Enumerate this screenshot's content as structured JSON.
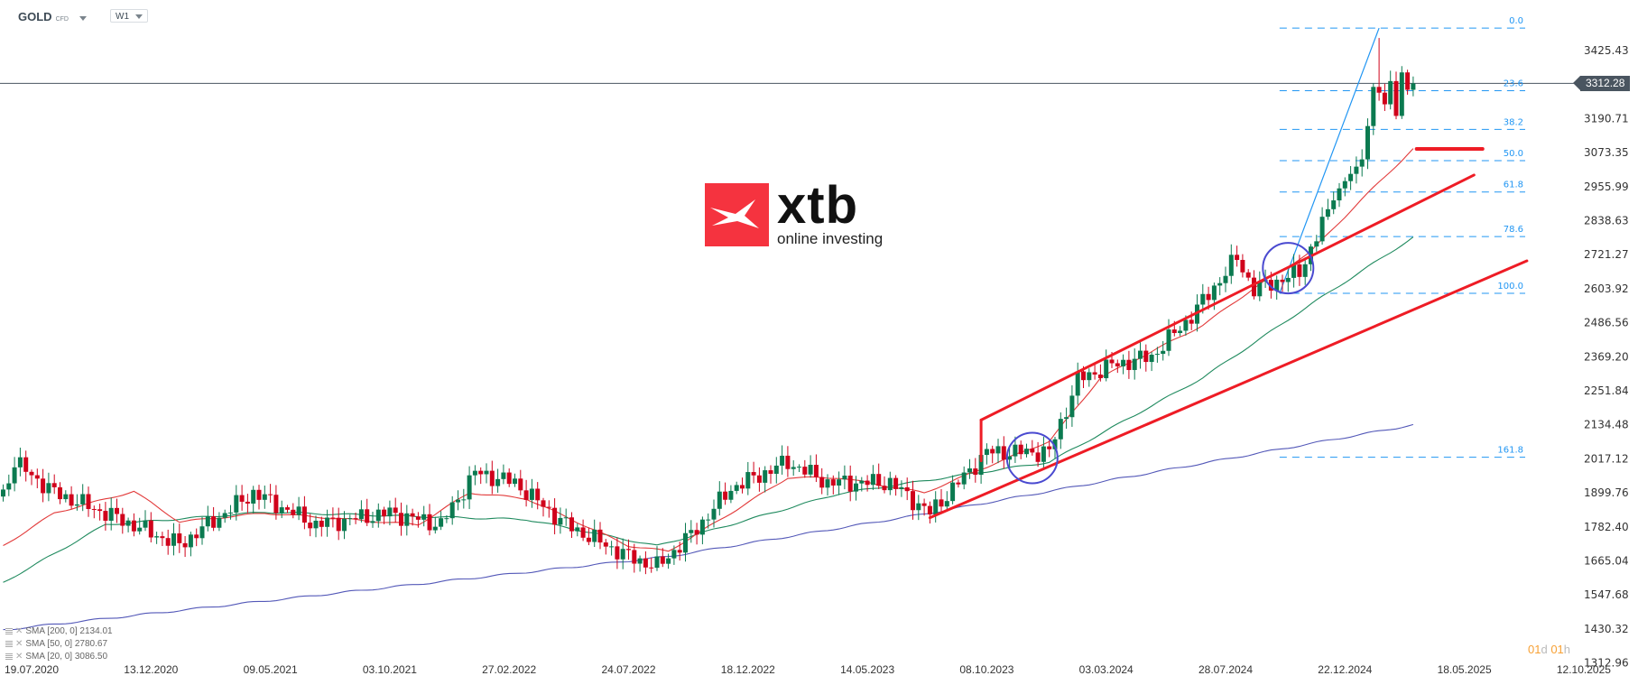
{
  "header": {
    "symbol": "GOLD",
    "instrument_type": "CFD",
    "timeframe": "W1"
  },
  "logo": {
    "brand": "xtb",
    "tagline": "online investing"
  },
  "current_price": "3312.28",
  "countdown": {
    "days": "01",
    "d": "d",
    "hours": "01",
    "h": "h"
  },
  "indicators": [
    {
      "label": "SMA [200, 0] 2134.01"
    },
    {
      "label": "SMA [50, 0] 2780.67"
    },
    {
      "label": "SMA [20, 0] 3086.50"
    }
  ],
  "colors": {
    "up": "#0b7a50",
    "down": "#d0021b",
    "sma200": "#5358b8",
    "sma50": "#1f8a5e",
    "sma20": "#e23a3a",
    "fib": "#2196f3",
    "trend": "#ee1c25",
    "circle": "#4a4ad0"
  },
  "chart_data": {
    "type": "candlestick",
    "x_unit": "weeks since 19.07.2020",
    "x_ticks": [
      "19.07.2020",
      "13.12.2020",
      "09.05.2021",
      "03.10.2021",
      "27.02.2022",
      "24.07.2022",
      "18.12.2022",
      "14.05.2023",
      "08.10.2023",
      "03.03.2024",
      "28.07.2024",
      "22.12.2024",
      "18.05.2025",
      "12.10.2025"
    ],
    "y_ticks": [
      "3425.43",
      "3190.71",
      "3073.35",
      "2955.99",
      "2838.63",
      "2721.27",
      "2603.92",
      "2486.56",
      "2369.20",
      "2251.84",
      "2134.48",
      "2017.12",
      "1899.76",
      "1782.40",
      "1665.04",
      "1547.68",
      "1430.32",
      "1312.96"
    ],
    "ylim": [
      1312.96,
      3425.43
    ],
    "close_anchors": [
      [
        -5,
        1897
      ],
      [
        -3,
        2006
      ],
      [
        4,
        1900
      ],
      [
        13,
        1830
      ],
      [
        26,
        1720
      ],
      [
        39,
        1900
      ],
      [
        50,
        1790
      ],
      [
        63,
        1830
      ],
      [
        72,
        1790
      ],
      [
        78,
        1970
      ],
      [
        85,
        1935
      ],
      [
        94,
        1790
      ],
      [
        105,
        1680
      ],
      [
        110,
        1645
      ],
      [
        116,
        1755
      ],
      [
        123,
        1915
      ],
      [
        133,
        2006
      ],
      [
        140,
        1935
      ],
      [
        151,
        1935
      ],
      [
        158,
        1830
      ],
      [
        168,
        2040
      ],
      [
        179,
        2040
      ],
      [
        184,
        2290
      ],
      [
        190,
        2340
      ],
      [
        197,
        2370
      ],
      [
        204,
        2510
      ],
      [
        212,
        2710
      ],
      [
        215,
        2600
      ],
      [
        223,
        2660
      ],
      [
        230,
        2950
      ],
      [
        234,
        3050
      ],
      [
        235,
        3165
      ],
      [
        236,
        3300
      ],
      [
        237,
        3280
      ],
      [
        238,
        3240
      ],
      [
        239,
        3320
      ],
      [
        240,
        3200
      ],
      [
        241,
        3350
      ],
      [
        242,
        3290
      ],
      [
        243,
        3312
      ]
    ],
    "sma200": [
      [
        -5,
        1427
      ],
      [
        112,
        1680
      ],
      [
        158,
        1830
      ],
      [
        243,
        2134
      ]
    ],
    "sma50": [
      [
        -5,
        1590
      ],
      [
        13,
        1790
      ],
      [
        41,
        1833
      ],
      [
        87,
        1808
      ],
      [
        110,
        1717
      ],
      [
        142,
        1897
      ],
      [
        179,
        2006
      ],
      [
        206,
        2297
      ],
      [
        225,
        2550
      ],
      [
        243,
        2781
      ]
    ],
    "sma20": [
      [
        -5,
        1717
      ],
      [
        4,
        1830
      ],
      [
        18,
        1905
      ],
      [
        26,
        1800
      ],
      [
        41,
        1830
      ],
      [
        68,
        1790
      ],
      [
        77,
        1900
      ],
      [
        87,
        1880
      ],
      [
        105,
        1717
      ],
      [
        112,
        1698
      ],
      [
        123,
        1830
      ],
      [
        133,
        1952
      ],
      [
        142,
        1952
      ],
      [
        157,
        1900
      ],
      [
        170,
        2006
      ],
      [
        179,
        2078
      ],
      [
        188,
        2297
      ],
      [
        206,
        2478
      ],
      [
        215,
        2606
      ],
      [
        225,
        2732
      ],
      [
        234,
        2913
      ],
      [
        243,
        3086
      ]
    ],
    "fibonacci": {
      "start": [
        219.5,
        2588
      ],
      "end": [
        237,
        3503
      ],
      "extend_to_week": 262.7,
      "levels": [
        {
          "label": "0.0",
          "r": 0
        },
        {
          "label": "23.6",
          "r": 0.236
        },
        {
          "label": "38.2",
          "r": 0.382
        },
        {
          "label": "50.0",
          "r": 0.5
        },
        {
          "label": "61.8",
          "r": 0.618
        },
        {
          "label": "78.6",
          "r": 0.786
        },
        {
          "label": "100.0",
          "r": 1
        },
        {
          "label": "161.8",
          "r": 1.618
        }
      ]
    },
    "trendlines": [
      {
        "from": [
          167,
          2151
        ],
        "to": [
          253.7,
          2996
        ]
      },
      {
        "from": [
          167,
          2151
        ],
        "to": [
          167,
          2010
        ]
      },
      {
        "from": [
          158,
          1814
        ],
        "to": [
          263,
          2700
        ]
      },
      {
        "from": [
          243.6,
          3086
        ],
        "to": [
          255.2,
          3086
        ],
        "thick": true
      }
    ],
    "circles": [
      {
        "center": [
          176,
          2020
        ]
      },
      {
        "center": [
          221,
          2675
        ]
      }
    ]
  }
}
